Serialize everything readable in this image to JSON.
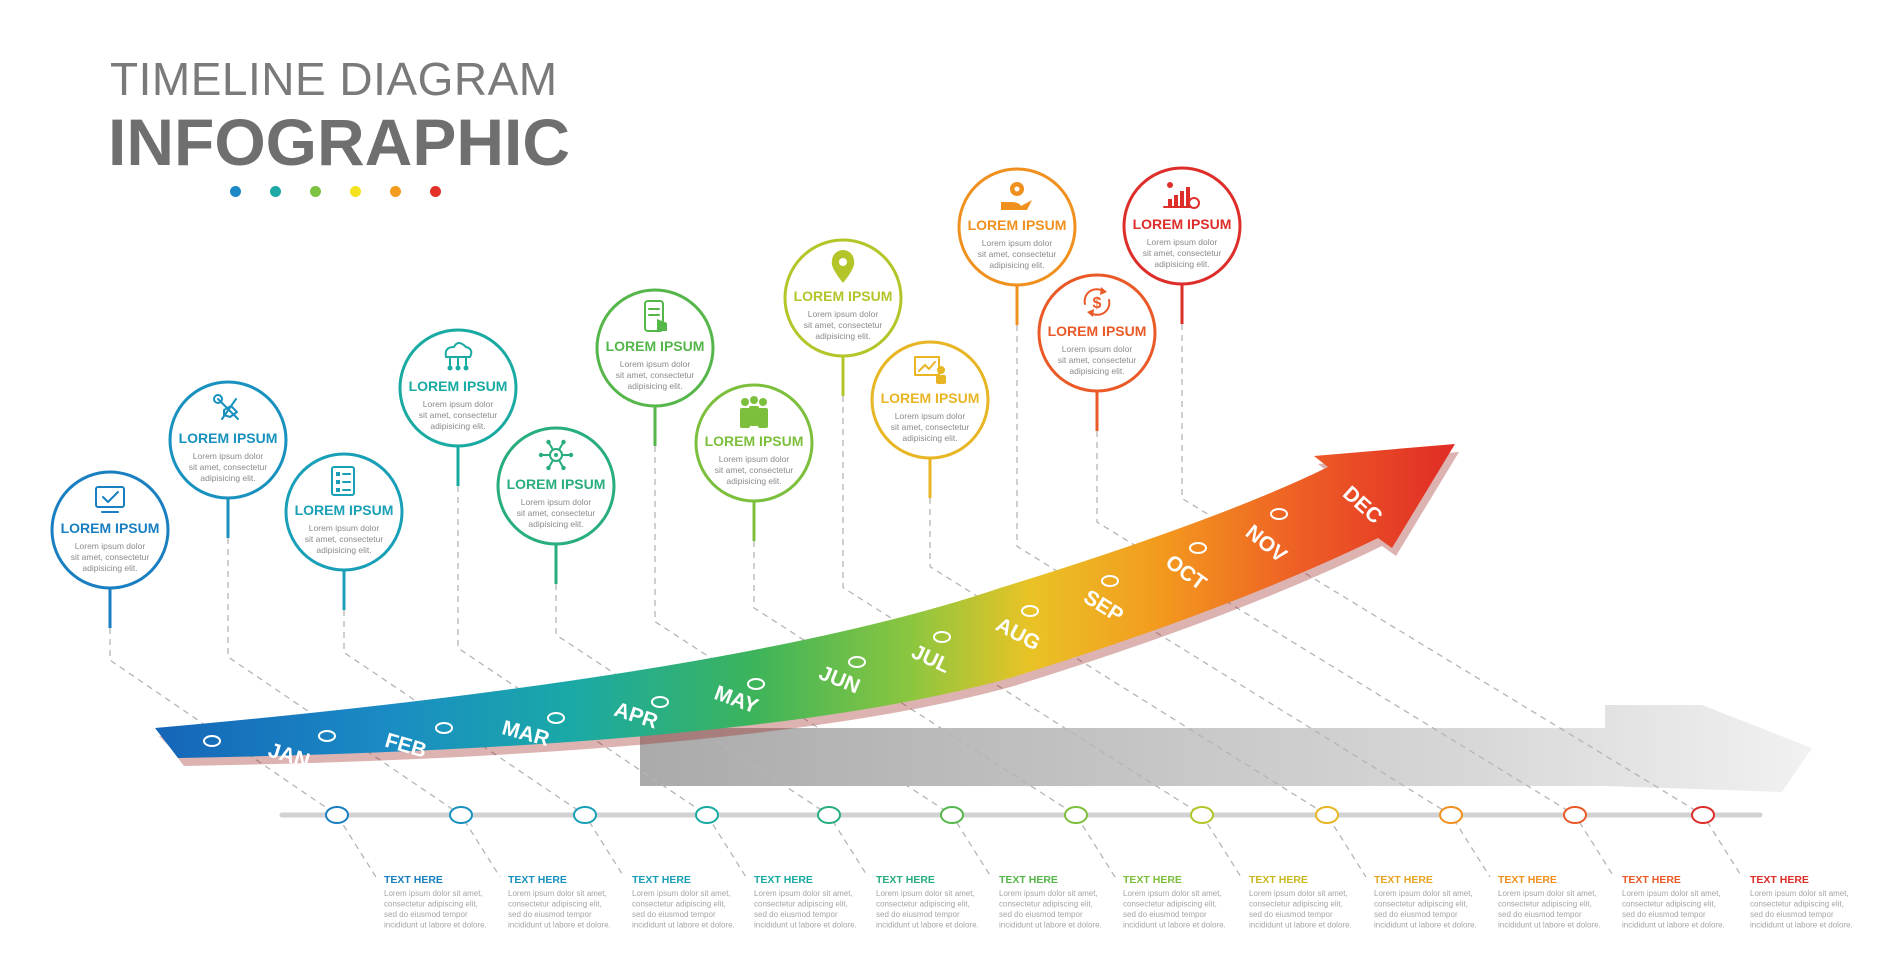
{
  "header": {
    "title_line1": "TIMELINE DIAGRAM",
    "title_line2": "INFOGRAPHIC",
    "dot_colors": [
      "#1e88c7",
      "#1fa9a6",
      "#7dc242",
      "#f3e21c",
      "#f39c1d",
      "#e2322a"
    ]
  },
  "milestones": [
    {
      "month": "JAN",
      "title": "LOREM IPSUM",
      "desc": [
        "Lorem ipsum dolor",
        "sit amet, consectetur",
        "adipisicing elit."
      ],
      "icon": "monitor-check-icon",
      "color": "#1a7fc0"
    },
    {
      "month": "FEB",
      "title": "LOREM IPSUM",
      "desc": [
        "Lorem ipsum dolor",
        "sit amet, consectetur",
        "adipisicing elit."
      ],
      "icon": "tools-icon",
      "color": "#1991bf"
    },
    {
      "month": "MAR",
      "title": "LOREM IPSUM",
      "desc": [
        "Lorem ipsum dolor",
        "sit amet, consectetur",
        "adipisicing elit."
      ],
      "icon": "checklist-icon",
      "color": "#1aa0b6"
    },
    {
      "month": "APR",
      "title": "LOREM IPSUM",
      "desc": [
        "Lorem ipsum dolor",
        "sit amet, consectetur",
        "adipisicing elit."
      ],
      "icon": "cloud-network-icon",
      "color": "#19aaa2"
    },
    {
      "month": "MAY",
      "title": "LOREM IPSUM",
      "desc": [
        "Lorem ipsum dolor",
        "sit amet, consectetur",
        "adipisicing elit."
      ],
      "icon": "network-hub-icon",
      "color": "#28ad7c"
    },
    {
      "month": "JUN",
      "title": "LOREM IPSUM",
      "desc": [
        "Lorem ipsum dolor",
        "sit amet, consectetur",
        "adipisicing elit."
      ],
      "icon": "mobile-touch-icon",
      "color": "#55b64a"
    },
    {
      "month": "JUL",
      "title": "LOREM IPSUM",
      "desc": [
        "Lorem ipsum dolor",
        "sit amet, consectetur",
        "adipisicing elit."
      ],
      "icon": "team-icon",
      "color": "#7cbf3c"
    },
    {
      "month": "AUG",
      "title": "LOREM IPSUM",
      "desc": [
        "Lorem ipsum dolor",
        "sit amet, consectetur",
        "adipisicing elit."
      ],
      "icon": "location-pin-icon",
      "color": "#b4c52a"
    },
    {
      "month": "SEP",
      "title": "LOREM IPSUM",
      "desc": [
        "Lorem ipsum dolor",
        "sit amet, consectetur",
        "adipisicing elit."
      ],
      "icon": "presentation-icon",
      "color": "#e8b524"
    },
    {
      "month": "OCT",
      "title": "LOREM IPSUM",
      "desc": [
        "Lorem ipsum dolor",
        "sit amet, consectetur",
        "adipisicing elit."
      ],
      "icon": "hand-gear-icon",
      "color": "#f0901f"
    },
    {
      "month": "NOV",
      "title": "LOREM IPSUM",
      "desc": [
        "Lorem ipsum dolor",
        "sit amet, consectetur",
        "adipisicing elit."
      ],
      "icon": "dollar-exchange-icon",
      "color": "#ea5a28"
    },
    {
      "month": "DEC",
      "title": "LOREM IPSUM",
      "desc": [
        "Lorem ipsum dolor",
        "sit amet, consectetur",
        "adipisicing elit."
      ],
      "icon": "growth-chart-icon",
      "color": "#dd2e2a"
    }
  ],
  "bottom_notes": [
    {
      "title": "TEXT HERE",
      "lines": [
        "Lorem ipsum dolor sit amet,",
        "consectetur adipiscing elit,",
        "sed do eiusmod tempor",
        "incididunt ut labore et dolore."
      ],
      "color": "#1a7fc0"
    },
    {
      "title": "TEXT HERE",
      "lines": [
        "Lorem ipsum dolor sit amet,",
        "consectetur adipiscing elit,",
        "sed do eiusmod tempor",
        "incididunt ut labore et dolore."
      ],
      "color": "#1991bf"
    },
    {
      "title": "TEXT HERE",
      "lines": [
        "Lorem ipsum dolor sit amet,",
        "consectetur adipiscing elit,",
        "sed do eiusmod tempor",
        "incididunt ut labore et dolore."
      ],
      "color": "#1aa0b6"
    },
    {
      "title": "TEXT HERE",
      "lines": [
        "Lorem ipsum dolor sit amet,",
        "consectetur adipiscing elit,",
        "sed do eiusmod tempor",
        "incididunt ut labore et dolore."
      ],
      "color": "#19aaa2"
    },
    {
      "title": "TEXT HERE",
      "lines": [
        "Lorem ipsum dolor sit amet,",
        "consectetur adipiscing elit,",
        "sed do eiusmod tempor",
        "incididunt ut labore et dolore."
      ],
      "color": "#28ad7c"
    },
    {
      "title": "TEXT HERE",
      "lines": [
        "Lorem ipsum dolor sit amet,",
        "consectetur adipiscing elit,",
        "sed do eiusmod tempor",
        "incididunt ut labore et dolore."
      ],
      "color": "#55b64a"
    },
    {
      "title": "TEXT HERE",
      "lines": [
        "Lorem ipsum dolor sit amet,",
        "consectetur adipiscing elit,",
        "sed do eiusmod tempor",
        "incididunt ut labore et dolore."
      ],
      "color": "#7cbf3c"
    },
    {
      "title": "TEXT HERE",
      "lines": [
        "Lorem ipsum dolor sit amet,",
        "consectetur adipiscing elit,",
        "sed do eiusmod tempor",
        "incididunt ut labore et dolore."
      ],
      "color": "#c9b820"
    },
    {
      "title": "TEXT HERE",
      "lines": [
        "Lorem ipsum dolor sit amet,",
        "consectetur adipiscing elit,",
        "sed do eiusmod tempor",
        "incididunt ut labore et dolore."
      ],
      "color": "#e8a524"
    },
    {
      "title": "TEXT HERE",
      "lines": [
        "Lorem ipsum dolor sit amet,",
        "consectetur adipiscing elit,",
        "sed do eiusmod tempor",
        "incididunt ut labore et dolore."
      ],
      "color": "#f0901f"
    },
    {
      "title": "TEXT HERE",
      "lines": [
        "Lorem ipsum dolor sit amet,",
        "consectetur adipiscing elit,",
        "sed do eiusmod tempor",
        "incididunt ut labore et dolore."
      ],
      "color": "#ea5a28"
    },
    {
      "title": "TEXT HERE",
      "lines": [
        "Lorem ipsum dolor sit amet,",
        "consectetur adipiscing elit,",
        "sed do eiusmod tempor",
        "incididunt ut labore et dolore."
      ],
      "color": "#dd2e2a"
    }
  ]
}
